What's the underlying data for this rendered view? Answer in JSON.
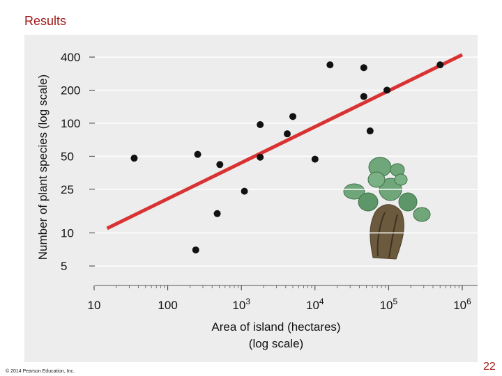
{
  "slide": {
    "title": "Results",
    "copyright": "© 2014 Pearson Education, Inc.",
    "page_number": "22"
  },
  "colors": {
    "title": "#a01818",
    "panel": "#ededed",
    "trend_line": "#d93232",
    "points": "#111111"
  },
  "illustration": "cactus-image",
  "chart_data": {
    "type": "scatter",
    "x_scale": "log",
    "y_scale": "log",
    "xlabel": [
      "Area of island (hectares)",
      "(log scale)"
    ],
    "ylabel": "Number of plant species (log scale)",
    "xlim": [
      10,
      1000000
    ],
    "ylim": [
      4.5,
      500
    ],
    "x_ticks": [
      {
        "value": 10,
        "base": "10",
        "exp": ""
      },
      {
        "value": 100,
        "base": "100",
        "exp": ""
      },
      {
        "value": 1000,
        "base": "10",
        "exp": "3"
      },
      {
        "value": 10000,
        "base": "10",
        "exp": "4"
      },
      {
        "value": 100000,
        "base": "10",
        "exp": "5"
      },
      {
        "value": 1000000,
        "base": "10",
        "exp": "6"
      }
    ],
    "y_ticks": [
      5,
      10,
      25,
      50,
      100,
      200,
      400
    ],
    "grid": true,
    "points": [
      {
        "x": 35,
        "y": 48
      },
      {
        "x": 240,
        "y": 7
      },
      {
        "x": 255,
        "y": 52
      },
      {
        "x": 470,
        "y": 15
      },
      {
        "x": 510,
        "y": 42
      },
      {
        "x": 1100,
        "y": 24
      },
      {
        "x": 1800,
        "y": 97
      },
      {
        "x": 1800,
        "y": 49
      },
      {
        "x": 4200,
        "y": 80
      },
      {
        "x": 5000,
        "y": 115
      },
      {
        "x": 10000,
        "y": 47
      },
      {
        "x": 16000,
        "y": 340
      },
      {
        "x": 46000,
        "y": 320
      },
      {
        "x": 46000,
        "y": 175
      },
      {
        "x": 56000,
        "y": 85
      },
      {
        "x": 95000,
        "y": 200
      },
      {
        "x": 500000,
        "y": 340
      }
    ],
    "trend_line": {
      "from": {
        "x": 15,
        "y": 11
      },
      "to": {
        "x": 1000000,
        "y": 420
      }
    }
  }
}
